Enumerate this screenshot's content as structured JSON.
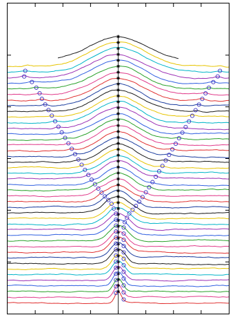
{
  "chart_data": {
    "type": "line",
    "title": "",
    "xlabel": "",
    "ylabel": "",
    "grid": false,
    "legend": "none",
    "xlim": [
      -1,
      1
    ],
    "ylim": [
      0,
      1
    ],
    "series_count": 44,
    "series_colors": [
      "#1a1a1a",
      "#e6c400",
      "#00b4c8",
      "#9b2fb4",
      "#2f5fe0",
      "#28a028",
      "#e03a8a",
      "#e03030",
      "#1a3c9e"
    ],
    "center_marker": "asterisk",
    "center_x": 0.0,
    "peak_marker": "circle",
    "peak_marker_color": "#3c32c0",
    "baseline_start_y": 0.815,
    "baseline_end_y": 0.035,
    "center_bump_top": 0.078,
    "center_bump_bottom": 0.036,
    "center_bump_width_top": 0.55,
    "center_bump_width_bottom": 0.06,
    "left_peak_x_by_row": [
      -0.82,
      -0.82,
      -0.84,
      -0.85,
      -0.78,
      -0.74,
      -0.71,
      -0.69,
      -0.66,
      -0.63,
      -0.6,
      -0.57,
      -0.54,
      -0.51,
      -0.48,
      -0.45,
      -0.42,
      -0.39,
      -0.36,
      -0.33,
      -0.3,
      -0.27,
      -0.24,
      -0.21,
      -0.18,
      -0.15,
      -0.12,
      -0.09,
      -0.06,
      -0.04,
      -0.02,
      -0.02,
      -0.02,
      -0.02,
      -0.02,
      -0.02,
      -0.02,
      -0.02,
      -0.02,
      -0.02,
      -0.02,
      -0.02,
      -0.02,
      -0.02
    ],
    "right_peak_x_by_row": [
      0.93,
      0.91,
      0.92,
      0.9,
      0.86,
      0.82,
      0.79,
      0.76,
      0.73,
      0.7,
      0.67,
      0.64,
      0.61,
      0.58,
      0.55,
      0.52,
      0.49,
      0.46,
      0.43,
      0.4,
      0.37,
      0.34,
      0.31,
      0.28,
      0.25,
      0.22,
      0.19,
      0.16,
      0.13,
      0.1,
      0.08,
      0.06,
      0.05,
      0.05,
      0.05,
      0.05,
      0.05,
      0.05,
      0.05,
      0.05,
      0.05,
      0.05,
      0.05,
      0.05
    ]
  }
}
